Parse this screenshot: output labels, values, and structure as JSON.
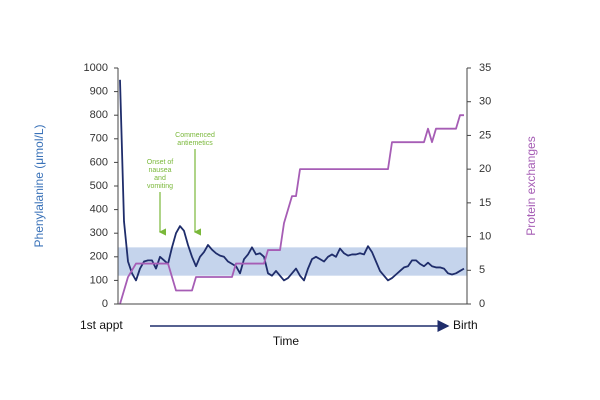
{
  "chart_data": {
    "type": "line",
    "ylabel": "Phenylalanine (μmol/L)",
    "y2label": "Protein exchanges",
    "xlabel": "Time",
    "x_start_label": "1st appt",
    "x_end_label": "Birth",
    "ylim": [
      0,
      1000
    ],
    "yticks": [
      0,
      100,
      200,
      300,
      400,
      500,
      600,
      700,
      800,
      900,
      1000
    ],
    "y2lim": [
      0,
      35
    ],
    "y2ticks": [
      0,
      5,
      10,
      15,
      20,
      25,
      30,
      35
    ],
    "target_band": [
      120,
      240
    ],
    "band_color": "#c5d4ec",
    "annotations": [
      {
        "lines": [
          "Onset of",
          "nausea",
          "and",
          "vomiting"
        ]
      },
      {
        "lines": [
          "Commenced",
          "antiemetics"
        ]
      }
    ],
    "series": [
      {
        "name": "Phenylalanine",
        "color": "#1f2d6b",
        "values": [
          950,
          350,
          180,
          130,
          100,
          150,
          180,
          185,
          185,
          150,
          200,
          185,
          170,
          240,
          300,
          330,
          310,
          250,
          200,
          160,
          200,
          220,
          250,
          230,
          215,
          205,
          200,
          180,
          170,
          160,
          130,
          190,
          210,
          240,
          210,
          215,
          200,
          130,
          120,
          140,
          120,
          100,
          110,
          130,
          150,
          120,
          100,
          150,
          190,
          200,
          190,
          180,
          200,
          210,
          200,
          235,
          215,
          205,
          210,
          210,
          215,
          210,
          245,
          220,
          180,
          140,
          120,
          100,
          110,
          125,
          140,
          155,
          160,
          185,
          185,
          170,
          160,
          175,
          160,
          155,
          155,
          150,
          130,
          125,
          130,
          140,
          150
        ]
      },
      {
        "name": "Protein exchanges",
        "color": "#a65db5",
        "axis": "y2",
        "values": [
          0,
          2,
          4,
          5,
          6,
          6,
          6,
          6,
          6,
          6,
          6,
          6,
          6,
          4,
          2,
          2,
          2,
          2,
          2,
          4,
          4,
          4,
          4,
          4,
          4,
          4,
          4,
          4,
          4,
          6,
          6,
          6,
          6,
          6,
          6,
          6,
          6,
          8,
          8,
          8,
          8,
          12,
          14,
          16,
          16,
          20,
          20,
          20,
          20,
          20,
          20,
          20,
          20,
          20,
          20,
          20,
          20,
          20,
          20,
          20,
          20,
          20,
          20,
          20,
          20,
          20,
          20,
          20,
          24,
          24,
          24,
          24,
          24,
          24,
          24,
          24,
          24,
          26,
          24,
          26,
          26,
          26,
          26,
          26,
          26,
          28,
          28
        ]
      }
    ]
  }
}
